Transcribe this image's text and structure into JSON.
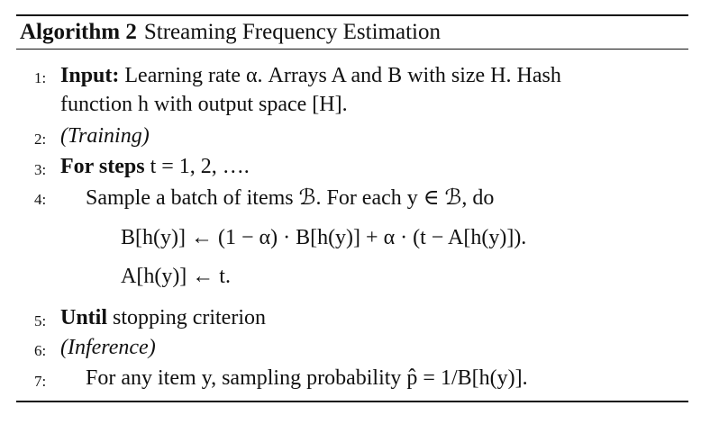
{
  "caption": {
    "label": "Algorithm 2",
    "title": "Streaming Frequency Estimation"
  },
  "lines": [
    {
      "num": "1:",
      "kw": "Input:",
      "text": " Learning rate α. Arrays A and B with size H. Hash"
    },
    {
      "cont": "function h with output space [H]."
    },
    {
      "num": "2:",
      "text": "(Training)"
    },
    {
      "num": "3:",
      "kw": "For steps",
      "text": " t = 1, 2, …."
    },
    {
      "num": "4:",
      "text": "Sample a batch of items ℬ. For each y ∈ ℬ, do"
    },
    {
      "eq1": "B[h(y)] ← (1 − α) · B[h(y)] + α · (t − A[h(y)])."
    },
    {
      "eq2": "A[h(y)] ← t."
    },
    {
      "num": "5:",
      "kw": "Until",
      "text": " stopping criterion"
    },
    {
      "num": "6:",
      "text": "(Inference)"
    },
    {
      "num": "7:",
      "text": "For any item y, sampling probability p̂ = 1/B[h(y)]."
    }
  ]
}
